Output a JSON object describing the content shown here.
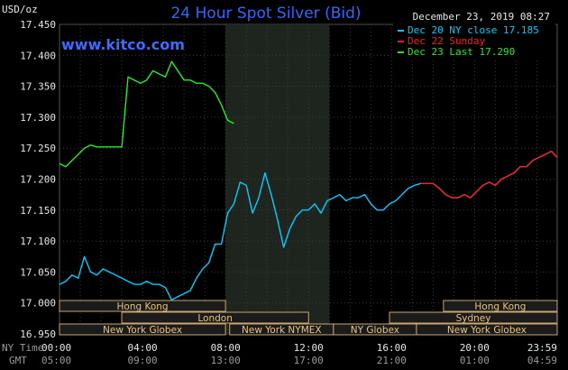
{
  "chart_data": {
    "type": "line",
    "title": "24 Hour Spot Silver (Bid)",
    "brand": "www.kitco.com",
    "timestamp": "December 23, 2019 08:27",
    "y_unit_label": "USD/oz",
    "ylim": [
      16.95,
      17.45
    ],
    "y_ticks": [
      "17.450",
      "17.400",
      "17.350",
      "17.300",
      "17.250",
      "17.200",
      "17.150",
      "17.100",
      "17.050",
      "17.000",
      "16.950"
    ],
    "x_ticks_ny": [
      "00:00",
      "04:00",
      "08:00",
      "12:00",
      "16:00",
      "20:00",
      "23:59"
    ],
    "x_ticks_gmt": [
      "05:00",
      "09:00",
      "13:00",
      "17:00",
      "21:00",
      "01:00",
      "04:59"
    ],
    "x_row_labels": {
      "ny": "NY Time",
      "gmt": "GMT"
    },
    "series": [
      {
        "name": "Dec 20 NY close 17.185",
        "color": "#00ccff",
        "x": [
          0,
          0.3,
          0.6,
          0.9,
          1.2,
          1.5,
          1.8,
          2.1,
          2.4,
          2.7,
          3.0,
          3.3,
          3.6,
          3.9,
          4.2,
          4.5,
          4.8,
          5.1,
          5.4,
          5.7,
          6.0,
          6.3,
          6.6,
          6.9,
          7.2,
          7.5,
          7.8,
          8.1,
          8.4,
          8.7,
          9.0,
          9.3,
          9.6,
          9.9,
          10.2,
          10.5,
          10.8,
          11.1,
          11.4,
          11.7,
          12.0,
          12.3,
          12.6,
          12.9,
          13.2,
          13.5,
          13.8,
          14.1,
          14.4,
          14.7,
          15.0,
          15.3,
          15.6,
          15.9,
          16.2,
          16.5,
          16.8,
          17.1,
          17.4,
          17.7,
          18.0,
          18.3,
          18.6,
          18.9,
          19.2,
          19.5,
          19.8,
          20.1,
          20.4,
          20.7,
          21.0,
          21.3,
          21.6,
          21.9,
          22.2,
          22.5,
          22.8,
          23.1,
          23.4,
          23.7,
          23.98
        ],
        "values": [
          17.03,
          17.035,
          17.045,
          17.04,
          17.075,
          17.05,
          17.045,
          17.055,
          17.05,
          17.045,
          17.04,
          17.035,
          17.03,
          17.03,
          17.035,
          17.03,
          17.03,
          17.025,
          17.005,
          17.01,
          17.015,
          17.02,
          17.04,
          17.055,
          17.065,
          17.095,
          17.095,
          17.145,
          17.16,
          17.195,
          17.19,
          17.145,
          17.17,
          17.21,
          17.175,
          17.135,
          17.09,
          17.12,
          17.14,
          17.15,
          17.15,
          17.16,
          17.145,
          17.165,
          17.17,
          17.175,
          17.165,
          17.17,
          17.17,
          17.175,
          17.16,
          17.15,
          17.15,
          17.16,
          17.165,
          17.175,
          17.185,
          17.19,
          17.193,
          17.193,
          17.193,
          17.185,
          17.175,
          17.17,
          17.17,
          17.175,
          17.17,
          17.18,
          17.19,
          17.195,
          17.19,
          17.2,
          17.205,
          17.21,
          17.22,
          17.22,
          17.23,
          17.235,
          17.24,
          17.245,
          17.235
        ]
      },
      {
        "name": "Dec 22 Sunday",
        "color": "#ff1a1a",
        "x": [
          17.4,
          17.7,
          18.0,
          18.3,
          18.6,
          18.9,
          19.2,
          19.5,
          19.8,
          20.1,
          20.4,
          20.7,
          21.0,
          21.3,
          21.6,
          21.9,
          22.2,
          22.5,
          22.8,
          23.1,
          23.4,
          23.7,
          23.98
        ],
        "values": [
          17.193,
          17.193,
          17.193,
          17.185,
          17.175,
          17.17,
          17.17,
          17.175,
          17.17,
          17.18,
          17.19,
          17.195,
          17.19,
          17.2,
          17.205,
          17.21,
          17.22,
          17.22,
          17.23,
          17.235,
          17.24,
          17.245,
          17.235
        ]
      },
      {
        "name": "Dec 23 Last 17.290",
        "color": "#22ee22",
        "x": [
          0,
          0.3,
          0.6,
          0.9,
          1.2,
          1.5,
          1.8,
          2.1,
          2.4,
          2.7,
          3.0,
          3.3,
          3.6,
          3.9,
          4.2,
          4.5,
          4.8,
          5.1,
          5.4,
          5.7,
          6.0,
          6.3,
          6.6,
          6.9,
          7.2,
          7.5,
          7.8,
          8.1,
          8.4
        ],
        "values": [
          17.225,
          17.22,
          17.23,
          17.24,
          17.25,
          17.255,
          17.252,
          17.252,
          17.252,
          17.252,
          17.252,
          17.365,
          17.36,
          17.355,
          17.36,
          17.375,
          17.37,
          17.365,
          17.39,
          17.375,
          17.36,
          17.36,
          17.355,
          17.355,
          17.35,
          17.34,
          17.32,
          17.295,
          17.29
        ]
      }
    ],
    "shaded_region": {
      "from": 8.0,
      "to": 13.0
    },
    "market_bands": [
      {
        "label": "Hong Kong",
        "from": 0.0,
        "to": 8.0,
        "row": 0
      },
      {
        "label": "London",
        "from": 3.0,
        "to": 12.0,
        "row": 1
      },
      {
        "label": "New York Globex",
        "from": 0.0,
        "to": 8.0,
        "row": 2
      },
      {
        "label": "New York NYMEX",
        "from": 8.2,
        "to": 13.2,
        "row": 2
      },
      {
        "label": "NY Globex",
        "from": 13.2,
        "to": 17.2,
        "row": 2
      },
      {
        "label": "Hong Kong",
        "from": 18.5,
        "to": 23.98,
        "row": 0
      },
      {
        "label": "Sydney",
        "from": 15.9,
        "to": 23.98,
        "row": 1
      },
      {
        "label": "New York Globex",
        "from": 17.2,
        "to": 23.98,
        "row": 2
      }
    ],
    "grid": true,
    "legend_position": "top-right"
  }
}
